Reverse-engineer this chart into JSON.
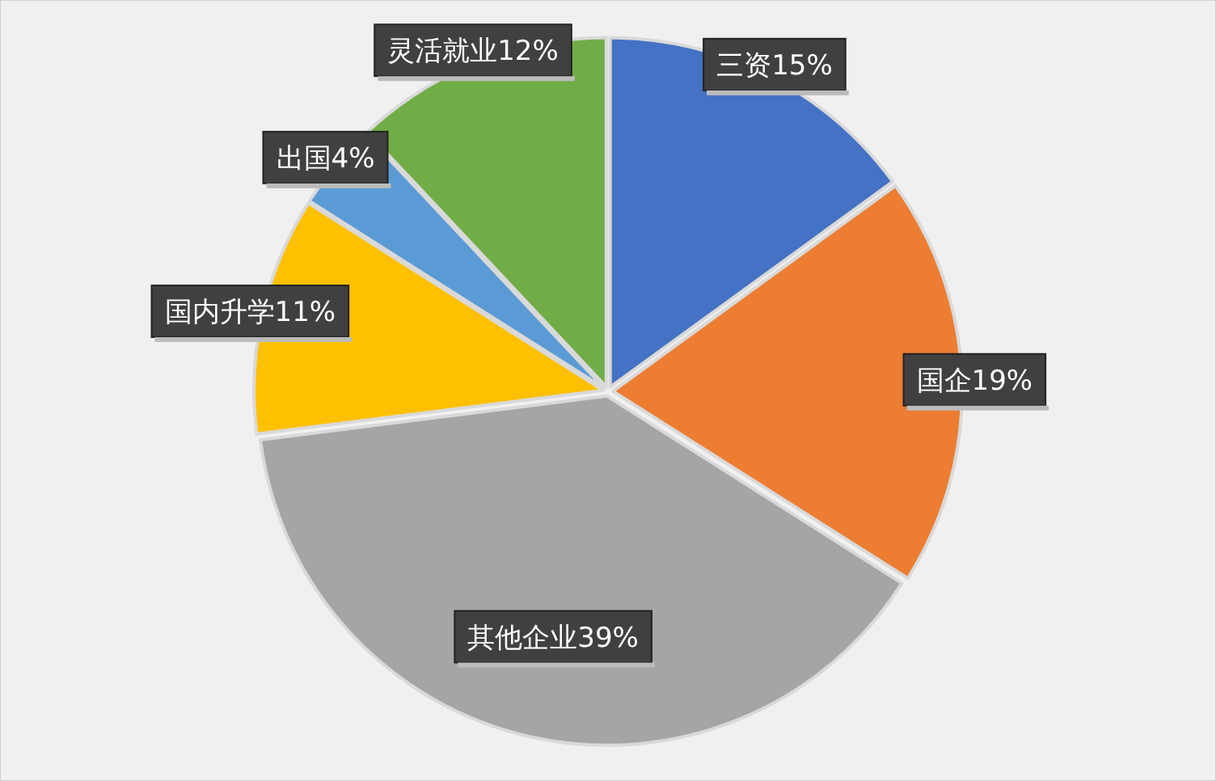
{
  "chart_data": {
    "type": "pie",
    "categories": [
      "三资",
      "国企",
      "其他企业",
      "国内升学",
      "出国",
      "灵活就业"
    ],
    "values": [
      15,
      19,
      39,
      11,
      4,
      12
    ],
    "value_labels": [
      "15%",
      "19%",
      "39%",
      "11%",
      "4%",
      "12%"
    ],
    "colors": [
      "#4472c4",
      "#ed7d31",
      "#a5a5a5",
      "#ffc000",
      "#5b9bd5",
      "#70ad47"
    ]
  }
}
